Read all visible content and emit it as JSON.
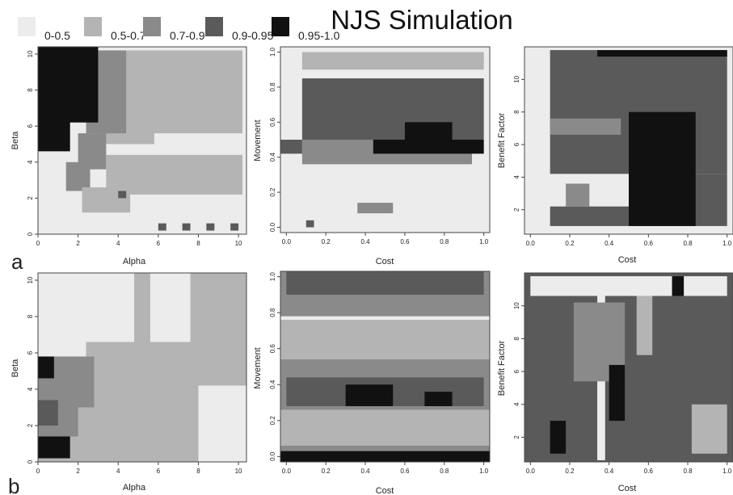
{
  "figure": {
    "title": "NJS Simulation",
    "row_labels": [
      "a",
      "b"
    ]
  },
  "colors": {
    "0-0.5": "#ececec",
    "0.5-0.7": "#b4b4b4",
    "0.7-0.9": "#8a8a8a",
    "0.9-0.95": "#5a5a5a",
    "0.95-1.0": "#111111"
  },
  "legend": [
    {
      "label": "0-0.5",
      "class": "0-0.5"
    },
    {
      "label": "0.5-0.7",
      "class": "0.5-0.7"
    },
    {
      "label": "0.7-0.9",
      "class": "0.7-0.9"
    },
    {
      "label": "0.9-0.95",
      "class": "0.9-0.95"
    },
    {
      "label": "0.95-1.0",
      "class": "0.95-1.0"
    }
  ],
  "chart_data": [
    {
      "type": "heatmap",
      "panel": "a-alpha-beta",
      "xlabel": "Alpha",
      "ylabel": "Beta",
      "xlim": [
        0,
        10.4
      ],
      "ylim": [
        0,
        10.4
      ],
      "xticks": [
        0,
        2,
        4,
        6,
        8,
        10
      ],
      "yticks": [
        0,
        2,
        4,
        6,
        8,
        10
      ],
      "background_class": "0-0.5",
      "regions": [
        {
          "class": "0.5-0.7",
          "x": [
            4.6,
            10.2
          ],
          "y": [
            5.6,
            10.2
          ]
        },
        {
          "class": "0.5-0.7",
          "x": [
            3.0,
            5.8
          ],
          "y": [
            5.0,
            10.2
          ]
        },
        {
          "class": "0.7-0.9",
          "x": [
            2.4,
            4.4
          ],
          "y": [
            5.6,
            10.2
          ]
        },
        {
          "class": "0.7-0.9",
          "x": [
            2.0,
            3.4
          ],
          "y": [
            3.6,
            5.6
          ]
        },
        {
          "class": "0.7-0.9",
          "x": [
            1.4,
            2.6
          ],
          "y": [
            2.4,
            4.0
          ]
        },
        {
          "class": "0.5-0.7",
          "x": [
            3.4,
            10.2
          ],
          "y": [
            2.2,
            4.4
          ]
        },
        {
          "class": "0.5-0.7",
          "x": [
            2.2,
            4.6
          ],
          "y": [
            1.2,
            2.6
          ]
        },
        {
          "class": "0.95-1.0",
          "x": [
            0.0,
            3.0
          ],
          "y": [
            6.2,
            10.4
          ]
        },
        {
          "class": "0.95-1.0",
          "x": [
            0.0,
            1.6
          ],
          "y": [
            4.6,
            6.4
          ]
        },
        {
          "class": "0.9-0.95",
          "x": [
            4.0,
            4.4
          ],
          "y": [
            2.0,
            2.4
          ]
        },
        {
          "class": "0.9-0.95",
          "x": [
            6.0,
            6.4
          ],
          "y": [
            0.2,
            0.6
          ]
        },
        {
          "class": "0.9-0.95",
          "x": [
            7.2,
            7.6
          ],
          "y": [
            0.2,
            0.6
          ]
        },
        {
          "class": "0.9-0.95",
          "x": [
            8.4,
            8.8
          ],
          "y": [
            0.2,
            0.6
          ]
        },
        {
          "class": "0.9-0.95",
          "x": [
            9.6,
            10.0
          ],
          "y": [
            0.2,
            0.6
          ]
        }
      ]
    },
    {
      "type": "heatmap",
      "panel": "a-cost-movement",
      "xlabel": "Cost",
      "ylabel": "Movement",
      "xlim": [
        -0.03,
        1.03
      ],
      "ylim": [
        -0.03,
        1.03
      ],
      "xticks": [
        0.0,
        0.2,
        0.4,
        0.6,
        0.8,
        1.0
      ],
      "yticks": [
        0.0,
        0.2,
        0.4,
        0.6,
        0.8,
        1.0
      ],
      "background_class": "0-0.5",
      "regions": [
        {
          "class": "0.5-0.7",
          "x": [
            0.08,
            1.0
          ],
          "y": [
            0.9,
            1.0
          ]
        },
        {
          "class": "0.9-0.95",
          "x": [
            0.08,
            1.0
          ],
          "y": [
            0.5,
            0.85
          ]
        },
        {
          "class": "0.7-0.9",
          "x": [
            0.08,
            0.94
          ],
          "y": [
            0.36,
            0.5
          ]
        },
        {
          "class": "0.95-1.0",
          "x": [
            0.6,
            0.84
          ],
          "y": [
            0.48,
            0.6
          ]
        },
        {
          "class": "0.95-1.0",
          "x": [
            0.44,
            1.0
          ],
          "y": [
            0.42,
            0.5
          ]
        },
        {
          "class": "0.9-0.95",
          "x": [
            -0.03,
            0.08
          ],
          "y": [
            0.42,
            0.5
          ]
        },
        {
          "class": "0.7-0.9",
          "x": [
            0.36,
            0.54
          ],
          "y": [
            0.08,
            0.14
          ]
        },
        {
          "class": "0.9-0.95",
          "x": [
            0.1,
            0.14
          ],
          "y": [
            0.0,
            0.04
          ]
        }
      ]
    },
    {
      "type": "heatmap",
      "panel": "a-cost-benefit",
      "xlabel": "Cost",
      "ylabel": "Benefit Factor",
      "xlim": [
        -0.03,
        1.03
      ],
      "ylim": [
        0.5,
        12.0
      ],
      "xticks": [
        0.0,
        0.2,
        0.4,
        0.6,
        0.8,
        1.0
      ],
      "yticks": [
        2,
        4,
        6,
        8,
        10
      ],
      "background_class": "0-0.5",
      "regions": [
        {
          "class": "0.9-0.95",
          "x": [
            0.1,
            1.0
          ],
          "y": [
            4.2,
            11.8
          ]
        },
        {
          "class": "0.9-0.95",
          "x": [
            0.5,
            1.0
          ],
          "y": [
            1.0,
            4.2
          ]
        },
        {
          "class": "0.7-0.9",
          "x": [
            0.1,
            0.46
          ],
          "y": [
            6.6,
            7.6
          ]
        },
        {
          "class": "0.95-1.0",
          "x": [
            0.5,
            0.84
          ],
          "y": [
            1.0,
            8.0
          ]
        },
        {
          "class": "0.95-1.0",
          "x": [
            0.34,
            1.0
          ],
          "y": [
            11.4,
            11.8
          ]
        },
        {
          "class": "0.9-0.95",
          "x": [
            0.1,
            0.5
          ],
          "y": [
            1.0,
            2.2
          ]
        },
        {
          "class": "0.7-0.9",
          "x": [
            0.18,
            0.3
          ],
          "y": [
            2.2,
            3.6
          ]
        }
      ]
    },
    {
      "type": "heatmap",
      "panel": "b-alpha-beta",
      "xlabel": "Alpha",
      "ylabel": "Beta",
      "xlim": [
        0,
        10.4
      ],
      "ylim": [
        0,
        10.4
      ],
      "xticks": [
        0,
        2,
        4,
        6,
        8,
        10
      ],
      "yticks": [
        0,
        2,
        4,
        6,
        8,
        10
      ],
      "background_class": "0.5-0.7",
      "regions": [
        {
          "class": "0-0.5",
          "x": [
            0.0,
            4.8
          ],
          "y": [
            6.6,
            10.4
          ]
        },
        {
          "class": "0-0.5",
          "x": [
            0.0,
            2.4
          ],
          "y": [
            5.8,
            6.8
          ]
        },
        {
          "class": "0-0.5",
          "x": [
            5.6,
            7.6
          ],
          "y": [
            6.6,
            10.4
          ]
        },
        {
          "class": "0.7-0.9",
          "x": [
            0.0,
            2.8
          ],
          "y": [
            3.0,
            5.8
          ]
        },
        {
          "class": "0.7-0.9",
          "x": [
            0.0,
            2.0
          ],
          "y": [
            1.4,
            3.0
          ]
        },
        {
          "class": "0.9-0.95",
          "x": [
            0.0,
            1.0
          ],
          "y": [
            2.0,
            3.4
          ]
        },
        {
          "class": "0.95-1.0",
          "x": [
            0.0,
            0.8
          ],
          "y": [
            4.6,
            5.8
          ]
        },
        {
          "class": "0.95-1.0",
          "x": [
            0.0,
            1.6
          ],
          "y": [
            0.2,
            1.4
          ]
        },
        {
          "class": "0-0.5",
          "x": [
            8.0,
            10.4
          ],
          "y": [
            0.0,
            4.2
          ]
        }
      ]
    },
    {
      "type": "heatmap",
      "panel": "b-cost-movement",
      "xlabel": "Cost",
      "ylabel": "Movement",
      "xlim": [
        -0.03,
        1.03
      ],
      "ylim": [
        -0.03,
        1.03
      ],
      "xticks": [
        0.0,
        0.2,
        0.4,
        0.6,
        0.8,
        1.0
      ],
      "yticks": [
        0.0,
        0.2,
        0.4,
        0.6,
        0.8,
        1.0
      ],
      "background_class": "0.7-0.9",
      "regions": [
        {
          "class": "0.5-0.7",
          "x": [
            -0.03,
            1.03
          ],
          "y": [
            0.54,
            0.76
          ]
        },
        {
          "class": "0.5-0.7",
          "x": [
            -0.03,
            1.03
          ],
          "y": [
            0.06,
            0.26
          ]
        },
        {
          "class": "0.9-0.95",
          "x": [
            0.0,
            1.0
          ],
          "y": [
            0.28,
            0.44
          ]
        },
        {
          "class": "0.95-1.0",
          "x": [
            0.3,
            0.54
          ],
          "y": [
            0.28,
            0.4
          ]
        },
        {
          "class": "0.95-1.0",
          "x": [
            0.7,
            0.84
          ],
          "y": [
            0.28,
            0.36
          ]
        },
        {
          "class": "0.95-1.0",
          "x": [
            -0.03,
            1.03
          ],
          "y": [
            -0.03,
            0.03
          ]
        },
        {
          "class": "0.9-0.95",
          "x": [
            0.0,
            1.0
          ],
          "y": [
            0.9,
            1.03
          ]
        },
        {
          "class": "0-0.5",
          "x": [
            -0.03,
            1.03
          ],
          "y": [
            0.76,
            0.78
          ]
        }
      ]
    },
    {
      "type": "heatmap",
      "panel": "b-cost-benefit",
      "xlabel": "Cost",
      "ylabel": "Benefit Factor",
      "xlim": [
        -0.03,
        1.03
      ],
      "ylim": [
        0.5,
        12.0
      ],
      "xticks": [
        0.0,
        0.2,
        0.4,
        0.6,
        0.8,
        1.0
      ],
      "yticks": [
        2,
        4,
        6,
        8,
        10
      ],
      "background_class": "0.9-0.95",
      "regions": [
        {
          "class": "0-0.5",
          "x": [
            0.0,
            1.0
          ],
          "y": [
            10.6,
            11.8
          ]
        },
        {
          "class": "0-0.5",
          "x": [
            0.34,
            0.38
          ],
          "y": [
            0.6,
            10.6
          ]
        },
        {
          "class": "0.7-0.9",
          "x": [
            0.22,
            0.48
          ],
          "y": [
            5.4,
            10.2
          ]
        },
        {
          "class": "0.95-1.0",
          "x": [
            0.4,
            0.48
          ],
          "y": [
            3.0,
            6.4
          ]
        },
        {
          "class": "0.95-1.0",
          "x": [
            0.1,
            0.18
          ],
          "y": [
            1.0,
            3.0
          ]
        },
        {
          "class": "0.5-0.7",
          "x": [
            0.82,
            1.0
          ],
          "y": [
            1.0,
            4.0
          ]
        },
        {
          "class": "0.5-0.7",
          "x": [
            0.54,
            0.62
          ],
          "y": [
            7.0,
            10.6
          ]
        },
        {
          "class": "0.95-1.0",
          "x": [
            0.72,
            0.78
          ],
          "y": [
            10.6,
            11.8
          ]
        }
      ]
    }
  ]
}
